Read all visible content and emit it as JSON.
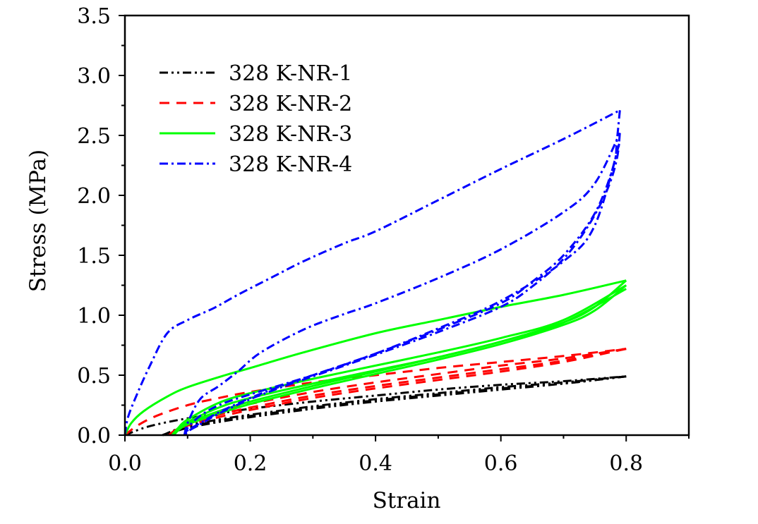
{
  "chart_data": {
    "type": "line",
    "title": "",
    "xlabel": "Strain",
    "ylabel": "Stress (MPa)",
    "xlim": [
      0.0,
      0.9
    ],
    "ylim": [
      0.0,
      3.5
    ],
    "x_ticks": [
      "0.0",
      "0.2",
      "0.4",
      "0.6",
      "0.8"
    ],
    "x_tick_values": [
      0.0,
      0.2,
      0.4,
      0.6,
      0.8
    ],
    "x_minor_tick_values": [
      0.1,
      0.3,
      0.5,
      0.7,
      0.9
    ],
    "y_ticks": [
      "0.0",
      "0.5",
      "1.0",
      "1.5",
      "2.0",
      "2.5",
      "3.0",
      "3.5"
    ],
    "y_tick_values": [
      0.0,
      0.5,
      1.0,
      1.5,
      2.0,
      2.5,
      3.0,
      3.5
    ],
    "y_minor_tick_values": [
      0.25,
      0.75,
      1.25,
      1.75,
      2.25,
      2.75,
      3.25
    ],
    "grid": false,
    "legend_position": "top-left",
    "series": [
      {
        "name": "328 K-NR-1",
        "color": "#000000",
        "dash": "dash-dot-dot",
        "segments": [
          {
            "x": [
              0.0,
              0.03,
              0.06,
              0.1,
              0.15,
              0.2,
              0.3,
              0.4,
              0.5,
              0.6,
              0.7,
              0.8
            ],
            "y": [
              0.0,
              0.06,
              0.1,
              0.14,
              0.18,
              0.22,
              0.28,
              0.33,
              0.38,
              0.42,
              0.45,
              0.49
            ]
          },
          {
            "x": [
              0.8,
              0.7,
              0.6,
              0.5,
              0.4,
              0.3,
              0.2,
              0.15,
              0.1,
              0.075,
              0.06
            ],
            "y": [
              0.49,
              0.43,
              0.39,
              0.34,
              0.29,
              0.23,
              0.16,
              0.12,
              0.07,
              0.03,
              0.0
            ]
          },
          {
            "x": [
              0.06,
              0.1,
              0.15,
              0.2,
              0.3,
              0.4,
              0.5,
              0.6,
              0.7,
              0.8
            ],
            "y": [
              0.0,
              0.08,
              0.13,
              0.17,
              0.24,
              0.3,
              0.35,
              0.4,
              0.44,
              0.49
            ]
          },
          {
            "x": [
              0.8,
              0.7,
              0.6,
              0.5,
              0.4,
              0.3,
              0.2,
              0.15,
              0.1,
              0.08,
              0.065
            ],
            "y": [
              0.49,
              0.43,
              0.38,
              0.33,
              0.28,
              0.22,
              0.15,
              0.11,
              0.06,
              0.03,
              0.0
            ]
          }
        ]
      },
      {
        "name": "328 K-NR-2",
        "color": "#ff0000",
        "dash": "dash",
        "segments": [
          {
            "x": [
              0.0,
              0.02,
              0.05,
              0.1,
              0.15,
              0.2,
              0.3,
              0.4,
              0.5,
              0.6,
              0.7,
              0.8
            ],
            "y": [
              0.0,
              0.08,
              0.16,
              0.25,
              0.31,
              0.36,
              0.44,
              0.5,
              0.56,
              0.61,
              0.66,
              0.72
            ]
          },
          {
            "x": [
              0.8,
              0.7,
              0.6,
              0.5,
              0.4,
              0.3,
              0.2,
              0.15,
              0.1,
              0.08,
              0.07
            ],
            "y": [
              0.72,
              0.62,
              0.55,
              0.48,
              0.41,
              0.33,
              0.23,
              0.17,
              0.09,
              0.04,
              0.0
            ]
          },
          {
            "x": [
              0.07,
              0.1,
              0.15,
              0.2,
              0.3,
              0.4,
              0.5,
              0.6,
              0.7,
              0.8
            ],
            "y": [
              0.0,
              0.1,
              0.19,
              0.26,
              0.36,
              0.44,
              0.51,
              0.58,
              0.64,
              0.72
            ]
          },
          {
            "x": [
              0.8,
              0.7,
              0.6,
              0.5,
              0.4,
              0.3,
              0.2,
              0.15,
              0.1,
              0.085,
              0.075
            ],
            "y": [
              0.72,
              0.61,
              0.53,
              0.46,
              0.39,
              0.31,
              0.21,
              0.15,
              0.08,
              0.04,
              0.0
            ]
          }
        ]
      },
      {
        "name": "328 K-NR-3",
        "color": "#00ff00",
        "dash": "solid",
        "segments": [
          {
            "x": [
              0.0,
              0.01,
              0.03,
              0.067,
              0.1,
              0.16,
              0.2,
              0.285,
              0.4,
              0.5,
              0.6,
              0.7,
              0.8
            ],
            "y": [
              0.0,
              0.1,
              0.2,
              0.32,
              0.4,
              0.5,
              0.56,
              0.69,
              0.85,
              0.96,
              1.07,
              1.17,
              1.29
            ]
          },
          {
            "x": [
              0.8,
              0.75,
              0.7,
              0.6,
              0.5,
              0.4,
              0.3,
              0.2,
              0.15,
              0.1,
              0.085,
              0.075
            ],
            "y": [
              1.29,
              1.07,
              0.94,
              0.78,
              0.65,
              0.53,
              0.41,
              0.28,
              0.2,
              0.1,
              0.05,
              0.0
            ]
          },
          {
            "x": [
              0.075,
              0.085,
              0.1,
              0.15,
              0.2,
              0.3,
              0.4,
              0.5,
              0.6,
              0.7,
              0.8
            ],
            "y": [
              0.0,
              0.06,
              0.13,
              0.27,
              0.35,
              0.47,
              0.58,
              0.69,
              0.81,
              0.96,
              1.25
            ]
          },
          {
            "x": [
              0.8,
              0.75,
              0.7,
              0.6,
              0.5,
              0.4,
              0.3,
              0.2,
              0.15,
              0.1,
              0.085,
              0.078
            ],
            "y": [
              1.25,
              1.04,
              0.92,
              0.76,
              0.63,
              0.51,
              0.39,
              0.26,
              0.18,
              0.09,
              0.04,
              0.0
            ]
          },
          {
            "x": [
              0.078,
              0.09,
              0.1,
              0.15,
              0.2,
              0.3,
              0.4,
              0.5,
              0.6,
              0.7,
              0.8
            ],
            "y": [
              0.0,
              0.07,
              0.11,
              0.23,
              0.31,
              0.43,
              0.54,
              0.65,
              0.78,
              0.94,
              1.22
            ]
          }
        ]
      },
      {
        "name": "328 K-NR-4",
        "color": "#0000ff",
        "dash": "dash-dot",
        "segments": [
          {
            "x": [
              0.0,
              0.005,
              0.02,
              0.04,
              0.0675,
              0.1,
              0.142,
              0.18,
              0.236,
              0.285,
              0.35,
              0.4,
              0.5,
              0.6,
              0.7,
              0.79
            ],
            "y": [
              0.0,
              0.15,
              0.35,
              0.58,
              0.85,
              0.96,
              1.06,
              1.17,
              1.32,
              1.45,
              1.6,
              1.7,
              1.96,
              2.22,
              2.47,
              2.71
            ]
          },
          {
            "x": [
              0.79,
              0.785,
              0.78,
              0.75,
              0.7,
              0.65,
              0.6,
              0.5,
              0.4,
              0.3,
              0.25,
              0.2,
              0.15,
              0.12,
              0.1,
              0.095
            ],
            "y": [
              2.71,
              2.45,
              2.25,
              1.85,
              1.5,
              1.28,
              1.1,
              0.88,
              0.68,
              0.5,
              0.41,
              0.31,
              0.19,
              0.1,
              0.04,
              0.0
            ]
          },
          {
            "x": [
              0.095,
              0.1,
              0.12,
              0.15,
              0.18,
              0.217,
              0.285,
              0.35,
              0.4,
              0.5,
              0.6,
              0.7,
              0.75,
              0.79
            ],
            "y": [
              0.0,
              0.1,
              0.3,
              0.41,
              0.53,
              0.69,
              0.88,
              1.01,
              1.1,
              1.31,
              1.55,
              1.86,
              2.1,
              2.52
            ]
          },
          {
            "x": [
              0.79,
              0.785,
              0.77,
              0.74,
              0.7,
              0.65,
              0.6,
              0.5,
              0.4,
              0.3,
              0.25,
              0.2,
              0.15,
              0.12,
              0.1,
              0.097
            ],
            "y": [
              2.52,
              2.3,
              2.05,
              1.75,
              1.47,
              1.24,
              1.07,
              0.86,
              0.67,
              0.49,
              0.4,
              0.3,
              0.18,
              0.09,
              0.03,
              0.0
            ]
          },
          {
            "x": [
              0.097,
              0.1,
              0.12,
              0.15,
              0.2,
              0.3,
              0.4,
              0.5,
              0.6,
              0.7,
              0.75,
              0.79
            ],
            "y": [
              0.0,
              0.06,
              0.16,
              0.25,
              0.34,
              0.5,
              0.68,
              0.89,
              1.12,
              1.45,
              1.75,
              2.45
            ]
          }
        ]
      }
    ]
  }
}
